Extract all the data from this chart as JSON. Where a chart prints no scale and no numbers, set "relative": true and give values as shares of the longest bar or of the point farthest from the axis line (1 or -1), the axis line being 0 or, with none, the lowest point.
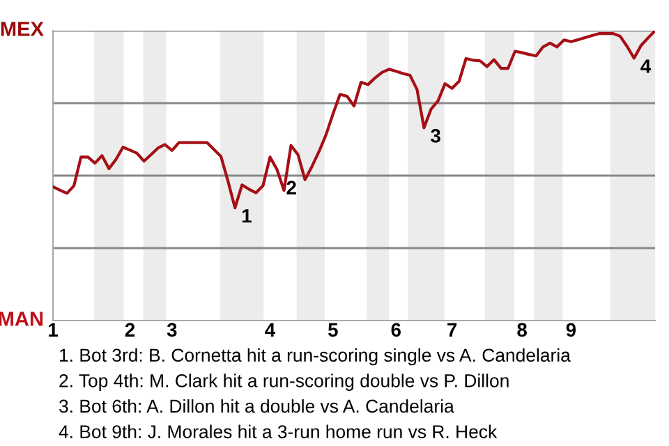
{
  "chart_data": {
    "type": "line",
    "relative": true,
    "categories": [
      "1",
      null,
      null,
      null,
      null,
      null,
      null,
      null,
      null,
      null,
      null,
      "2",
      null,
      null,
      null,
      null,
      null,
      "3",
      null,
      null,
      null,
      null,
      null,
      null,
      null,
      null,
      null,
      null,
      null,
      null,
      null,
      "4",
      null,
      null,
      null,
      null,
      null,
      null,
      null,
      null,
      "5",
      null,
      null,
      null,
      null,
      null,
      null,
      null,
      null,
      "6",
      null,
      null,
      null,
      null,
      null,
      null,
      null,
      "7",
      null,
      null,
      null,
      null,
      null,
      null,
      null,
      null,
      null,
      "8",
      null,
      null,
      null,
      null,
      null,
      null,
      "9",
      null,
      null,
      null,
      null,
      null,
      null,
      null,
      null,
      null,
      null,
      null,
      null
    ],
    "series": [
      {
        "color": "#a50f15",
        "values": [
          0.462,
          0.45,
          0.439,
          0.465,
          0.564,
          0.564,
          0.543,
          0.569,
          0.524,
          0.556,
          0.598,
          0.588,
          0.577,
          0.55,
          0.572,
          0.595,
          0.607,
          0.587,
          0.614,
          0.614,
          0.614,
          0.614,
          0.614,
          0.59,
          0.566,
          0.481,
          0.389,
          0.468,
          0.453,
          0.441,
          0.465,
          0.564,
          0.521,
          0.449,
          0.604,
          0.572,
          0.486,
          0.532,
          0.583,
          0.641,
          0.713,
          0.78,
          0.774,
          0.74,
          0.822,
          0.814,
          0.837,
          0.856,
          0.867,
          0.86,
          0.852,
          0.846,
          0.797,
          0.665,
          0.729,
          0.758,
          0.817,
          0.801,
          0.825,
          0.904,
          0.898,
          0.896,
          0.876,
          0.9,
          0.87,
          0.87,
          0.929,
          0.924,
          0.918,
          0.913,
          0.944,
          0.957,
          0.944,
          0.968,
          0.962,
          0.969,
          0.976,
          0.983,
          0.99,
          0.99,
          0.99,
          0.981,
          0.946,
          0.905,
          0.949,
          0.975,
          1
        ]
      }
    ],
    "grid": "y",
    "annotations": [
      "MEX",
      "MAN",
      "1",
      "2",
      "3",
      "4",
      "1. Bot 3rd: B. Cornetta hit a run-scoring single vs A. Candelaria",
      "2. Top 4th: M. Clark hit a run-scoring double vs P. Dillon",
      "3. Bot 6th: A. Dillon hit a double vs A. Candelaria",
      "4. Bot 9th: J. Morales hit a 3-run home run vs R. Heck"
    ]
  }
}
